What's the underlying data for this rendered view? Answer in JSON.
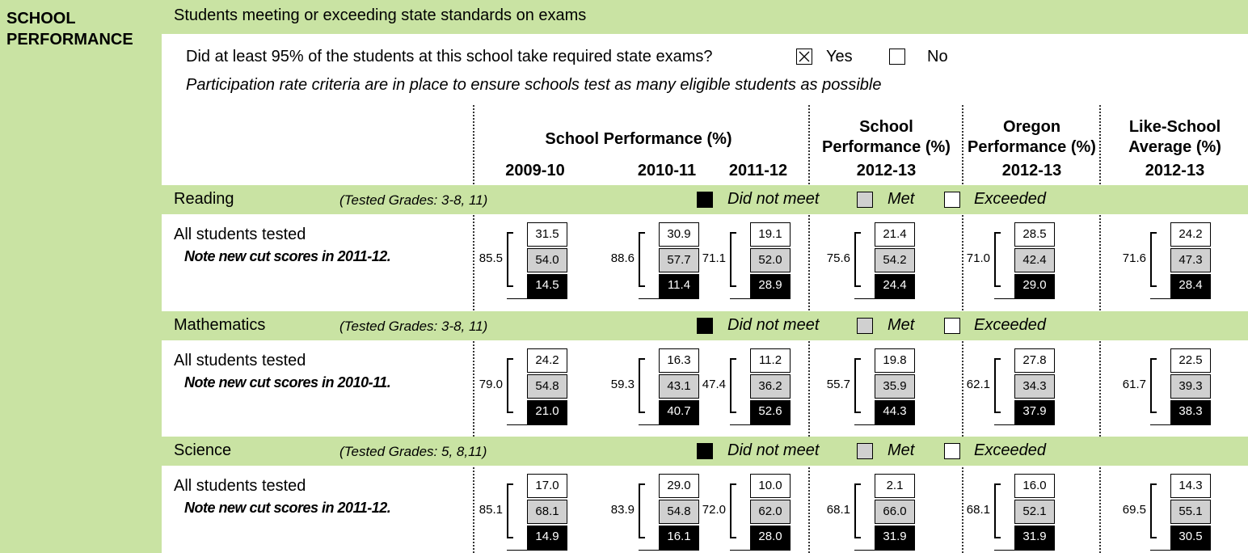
{
  "section": "SCHOOL PERFORMANCE",
  "banner": "Students meeting or exceeding state standards on exams",
  "participation": {
    "question": "Did at least 95% of the students at this school take required state exams?",
    "yes": "Yes",
    "no": "No",
    "note": "Participation rate criteria are in place to ensure schools test as many eligible students as possible"
  },
  "columns": [
    {
      "title": "School Performance (%)",
      "years": [
        "2009-10",
        "2010-11",
        "2011-12"
      ]
    },
    {
      "title": "School Performance (%)",
      "years": [
        "2012-13"
      ]
    },
    {
      "title": "Oregon Performance (%)",
      "years": [
        "2012-13"
      ]
    },
    {
      "title": "Like-School Average (%)",
      "years": [
        "2012-13"
      ]
    }
  ],
  "legend": {
    "did_not_meet": "Did not meet",
    "met": "Met",
    "exceeded": "Exceeded"
  },
  "subjects": [
    {
      "name": "Reading",
      "grades": "(Tested Grades: 3-8, 11)",
      "row_label": "All students tested",
      "note": "Note new cut scores in 2011-12.",
      "results": [
        {
          "total": "85.5",
          "exceeded": "31.5",
          "met": "54.0",
          "did_not_meet": "14.5"
        },
        {
          "total": "88.6",
          "exceeded": "30.9",
          "met": "57.7",
          "did_not_meet": "11.4"
        },
        {
          "total": "71.1",
          "exceeded": "19.1",
          "met": "52.0",
          "did_not_meet": "28.9"
        },
        {
          "total": "75.6",
          "exceeded": "21.4",
          "met": "54.2",
          "did_not_meet": "24.4"
        },
        {
          "total": "71.0",
          "exceeded": "28.5",
          "met": "42.4",
          "did_not_meet": "29.0"
        },
        {
          "total": "71.6",
          "exceeded": "24.2",
          "met": "47.3",
          "did_not_meet": "28.4"
        }
      ]
    },
    {
      "name": "Mathematics",
      "grades": "(Tested Grades: 3-8, 11)",
      "row_label": "All students tested",
      "note": "Note new cut scores in 2010-11.",
      "results": [
        {
          "total": "79.0",
          "exceeded": "24.2",
          "met": "54.8",
          "did_not_meet": "21.0"
        },
        {
          "total": "59.3",
          "exceeded": "16.3",
          "met": "43.1",
          "did_not_meet": "40.7"
        },
        {
          "total": "47.4",
          "exceeded": "11.2",
          "met": "36.2",
          "did_not_meet": "52.6"
        },
        {
          "total": "55.7",
          "exceeded": "19.8",
          "met": "35.9",
          "did_not_meet": "44.3"
        },
        {
          "total": "62.1",
          "exceeded": "27.8",
          "met": "34.3",
          "did_not_meet": "37.9"
        },
        {
          "total": "61.7",
          "exceeded": "22.5",
          "met": "39.3",
          "did_not_meet": "38.3"
        }
      ]
    },
    {
      "name": "Science",
      "grades": "(Tested Grades: 5, 8,11)",
      "row_label": "All students tested",
      "note": "Note new cut scores in 2011-12.",
      "results": [
        {
          "total": "85.1",
          "exceeded": "17.0",
          "met": "68.1",
          "did_not_meet": "14.9"
        },
        {
          "total": "83.9",
          "exceeded": "29.0",
          "met": "54.8",
          "did_not_meet": "16.1"
        },
        {
          "total": "72.0",
          "exceeded": "10.0",
          "met": "62.0",
          "did_not_meet": "28.0"
        },
        {
          "total": "68.1",
          "exceeded": "2.1",
          "met": "66.0",
          "did_not_meet": "31.9"
        },
        {
          "total": "68.1",
          "exceeded": "16.0",
          "met": "52.1",
          "did_not_meet": "31.9"
        },
        {
          "total": "69.5",
          "exceeded": "14.3",
          "met": "55.1",
          "did_not_meet": "30.5"
        }
      ]
    }
  ]
}
